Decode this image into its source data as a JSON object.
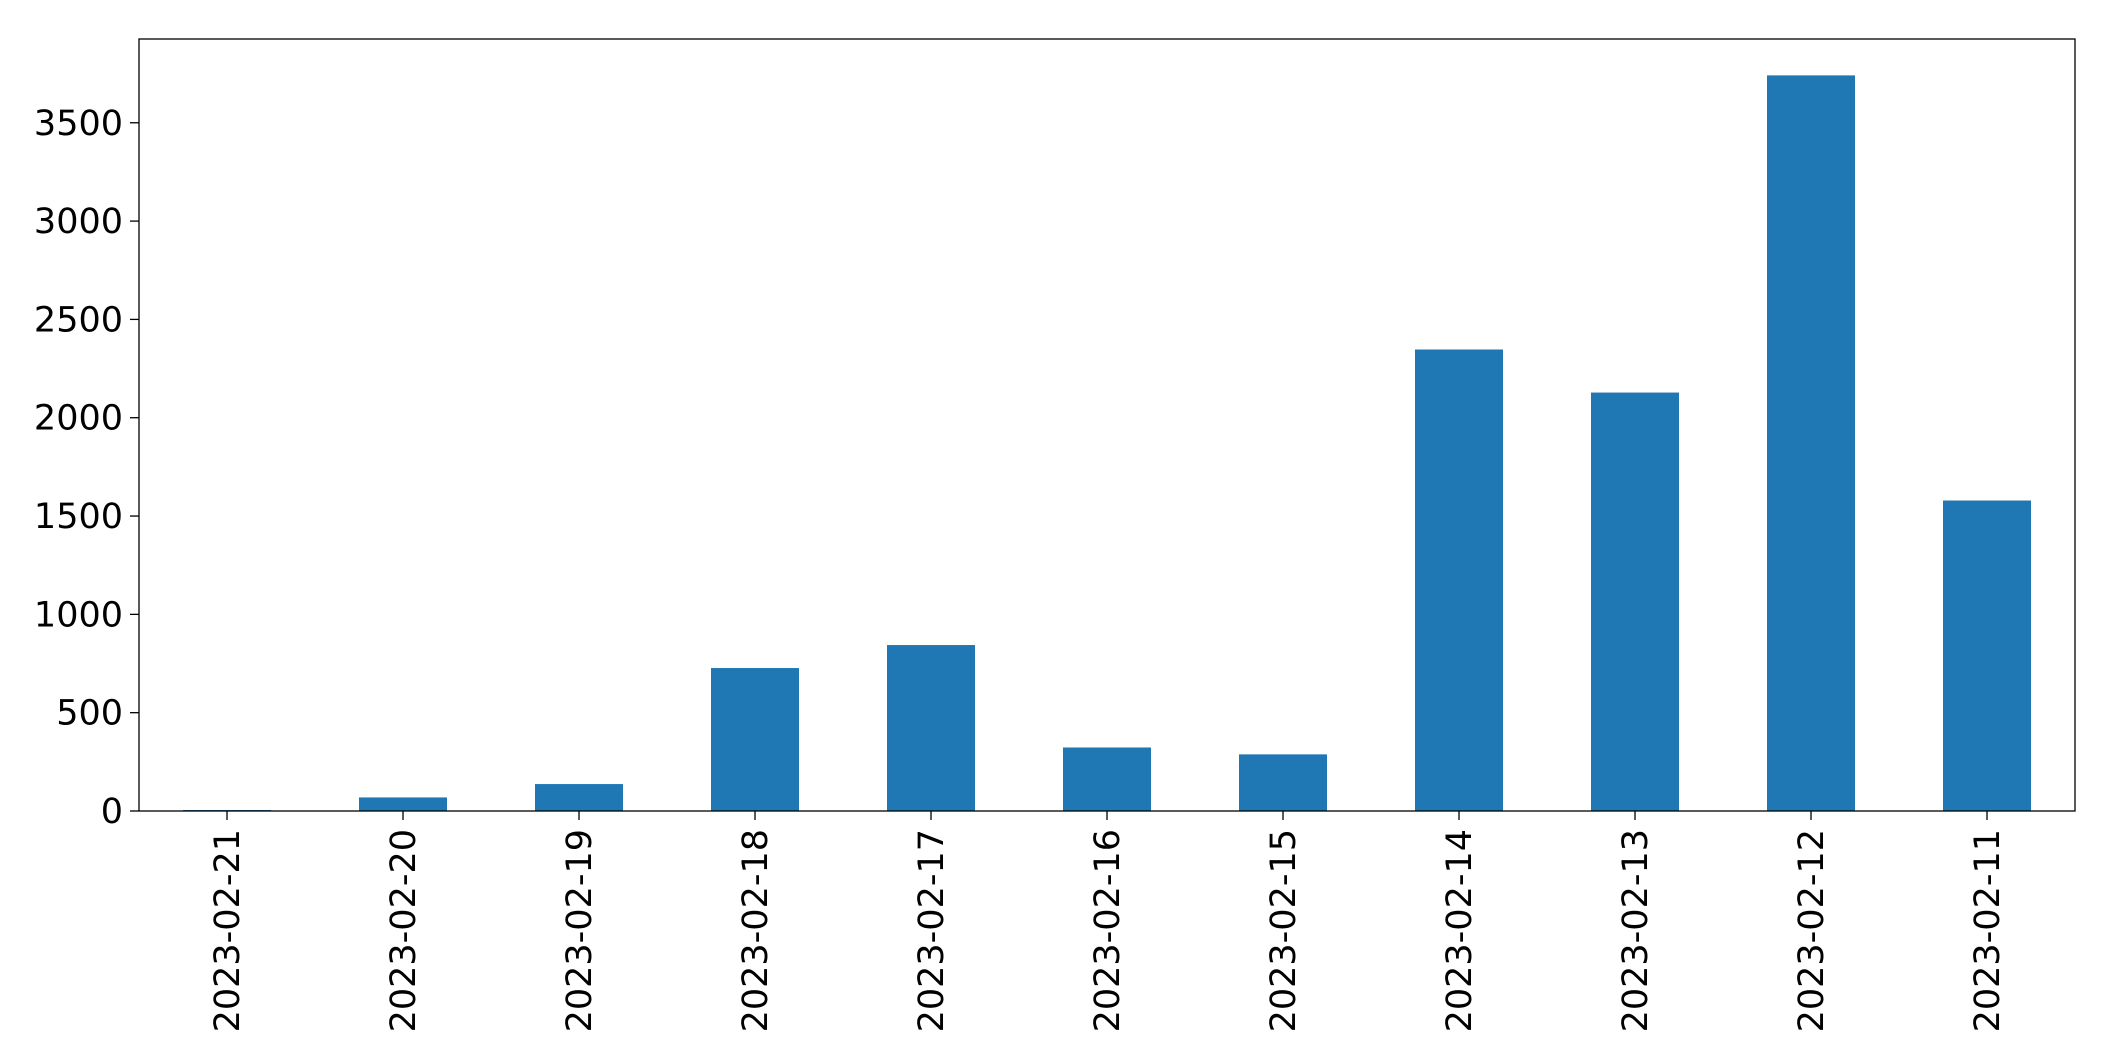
{
  "chart_data": {
    "type": "bar",
    "categories": [
      "2023-02-21",
      "2023-02-20",
      "2023-02-19",
      "2023-02-18",
      "2023-02-17",
      "2023-02-16",
      "2023-02-15",
      "2023-02-14",
      "2023-02-13",
      "2023-02-12",
      "2023-02-11"
    ],
    "values": [
      5,
      69,
      137,
      727,
      844,
      323,
      288,
      2347,
      2128,
      3741,
      1579
    ],
    "color": "#1f77b4",
    "ylim": [
      0,
      3926
    ],
    "yticks": [
      0,
      500,
      1000,
      1500,
      2000,
      2500,
      3000,
      3500
    ],
    "grid": false
  }
}
